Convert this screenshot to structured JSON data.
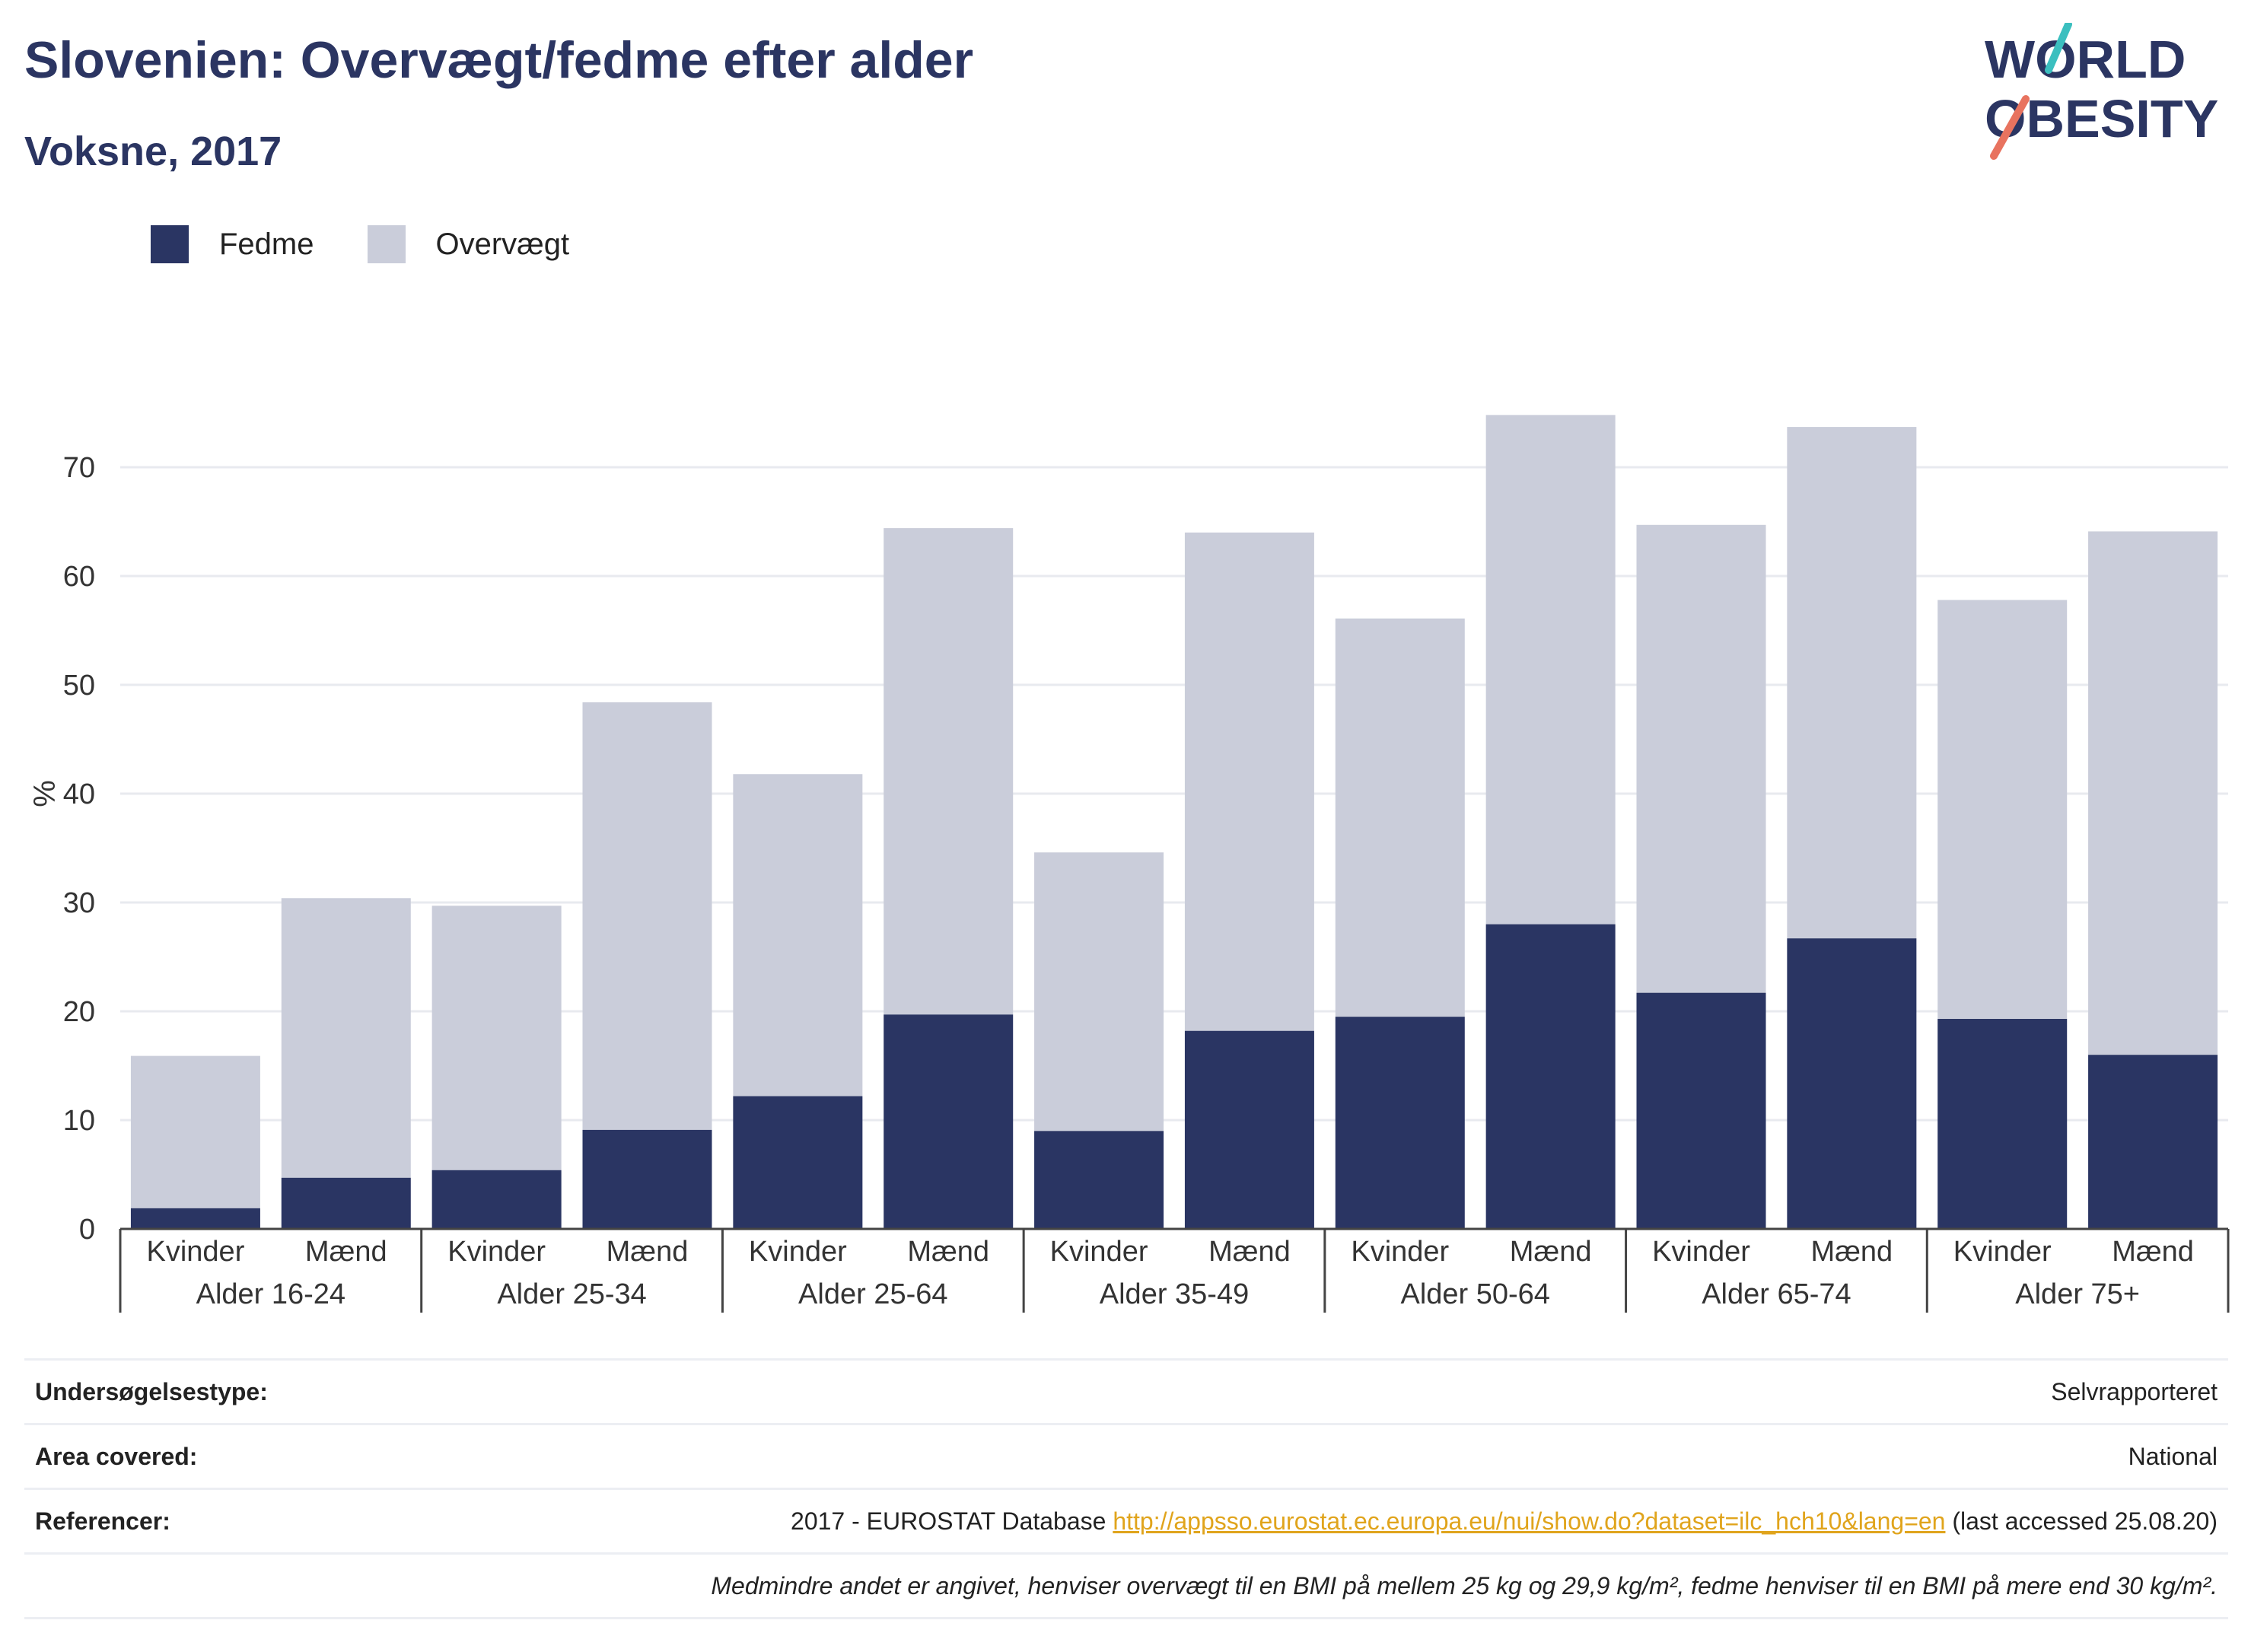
{
  "header": {
    "title": "Slovenien: Overvægt/fedme efter alder",
    "subtitle": "Voksne, 2017"
  },
  "logo": {
    "line1": "WORLD",
    "line2": "OBESITY"
  },
  "colors": {
    "fedme": "#2a3563",
    "overvaegt": "#cacdda",
    "accent_teal": "#3bbfbf",
    "accent_coral": "#e8735f"
  },
  "chart_data": {
    "type": "bar",
    "stacked": true,
    "ylabel": "%",
    "ylim": [
      0,
      80
    ],
    "yticks": [
      0,
      10,
      20,
      30,
      40,
      50,
      60,
      70
    ],
    "grid": true,
    "legend_position": "top-left",
    "groups": [
      "Alder 16-24",
      "Alder 25-34",
      "Alder 25-64",
      "Alder 35-49",
      "Alder 50-64",
      "Alder 65-74",
      "Alder 75+"
    ],
    "sub_categories": [
      "Kvinder",
      "Mænd"
    ],
    "series": [
      {
        "name": "Fedme",
        "values": [
          1.9,
          4.7,
          5.4,
          9.1,
          12.2,
          19.7,
          9.0,
          18.2,
          19.5,
          28.0,
          21.7,
          26.7,
          19.3,
          16.0
        ]
      },
      {
        "name": "Overvægt",
        "values": [
          14.0,
          25.7,
          24.3,
          39.3,
          29.6,
          44.7,
          25.6,
          45.8,
          36.6,
          46.8,
          43.0,
          47.0,
          38.5,
          48.1
        ]
      }
    ]
  },
  "footer": {
    "survey_label": "Undersøgelsestype:",
    "survey_value": "Selvrapporteret",
    "area_label": "Area covered:",
    "area_value": "National",
    "ref_label": "Referencer:",
    "ref_prefix": "2017 - EUROSTAT Database",
    "ref_link": "http://appsso.eurostat.ec.europa.eu/nui/show.do?dataset=ilc_hch10&lang=en",
    "ref_suffix": "(last accessed 25.08.20)",
    "note": "Medmindre andet er angivet, henviser overvægt til en BMI på mellem 25 kg og 29,9 kg/m², fedme henviser til en BMI på mere end 30 kg/m²."
  }
}
